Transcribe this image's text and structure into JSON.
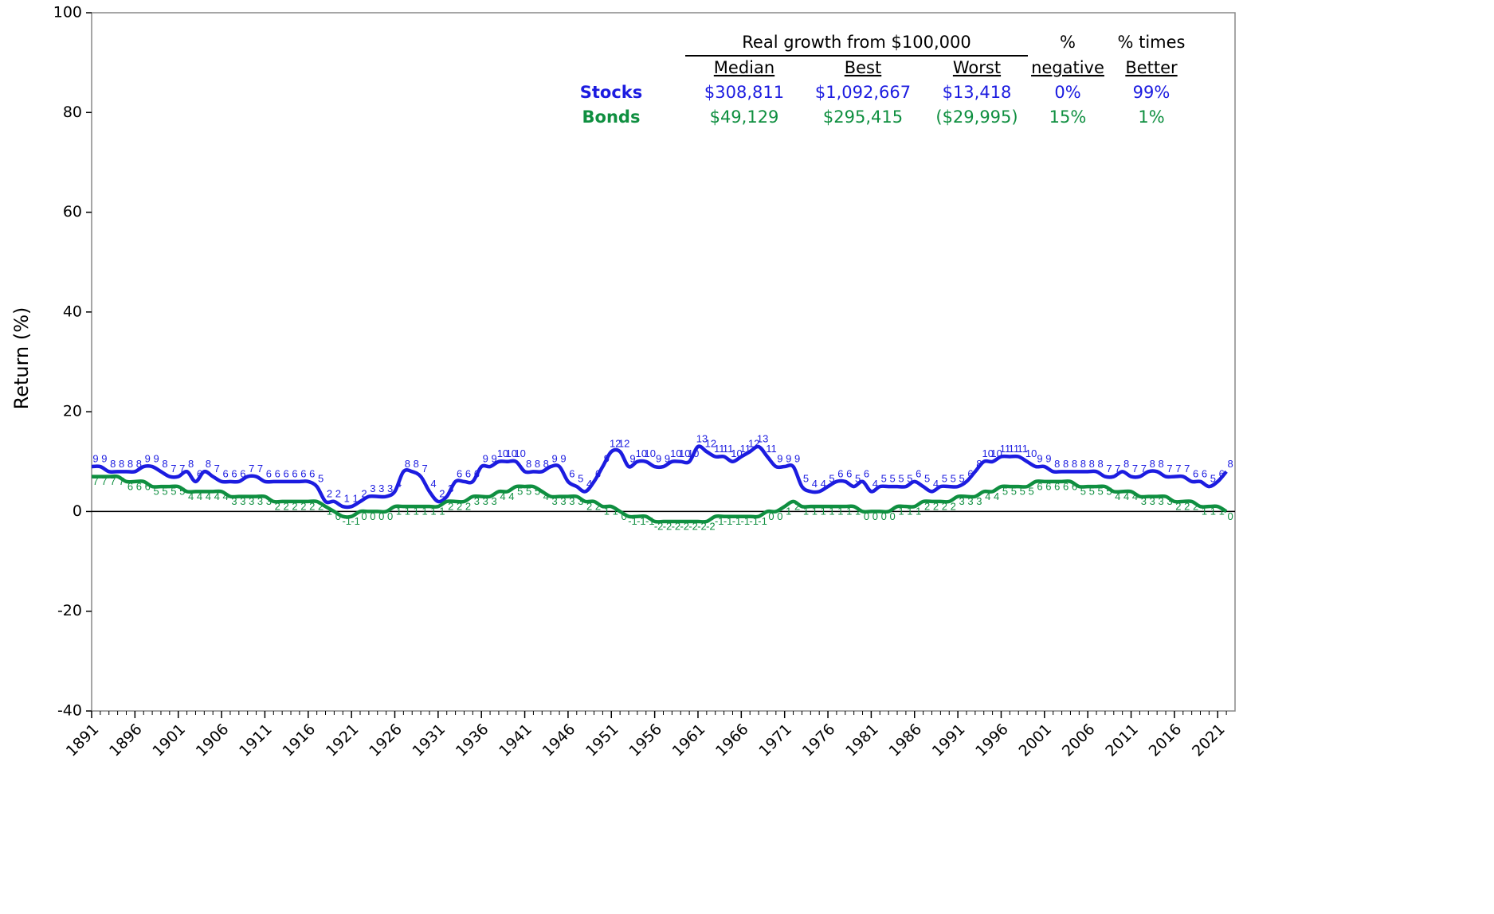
{
  "chart_data": {
    "type": "line",
    "y_label": "Return (%)",
    "x": [
      1891,
      1892,
      1893,
      1894,
      1895,
      1896,
      1897,
      1898,
      1899,
      1900,
      1901,
      1902,
      1903,
      1904,
      1905,
      1906,
      1907,
      1908,
      1909,
      1910,
      1911,
      1912,
      1913,
      1914,
      1915,
      1916,
      1917,
      1918,
      1919,
      1920,
      1921,
      1922,
      1923,
      1924,
      1925,
      1926,
      1927,
      1928,
      1929,
      1930,
      1931,
      1932,
      1933,
      1934,
      1935,
      1936,
      1937,
      1938,
      1939,
      1940,
      1941,
      1942,
      1943,
      1944,
      1945,
      1946,
      1947,
      1948,
      1949,
      1950,
      1951,
      1952,
      1953,
      1954,
      1955,
      1956,
      1957,
      1958,
      1959,
      1960,
      1961,
      1962,
      1963,
      1964,
      1965,
      1966,
      1967,
      1968,
      1969,
      1970,
      1971,
      1972,
      1973,
      1974,
      1975,
      1976,
      1977,
      1978,
      1979,
      1980,
      1981,
      1982,
      1983,
      1984,
      1985,
      1986,
      1987,
      1988,
      1989,
      1990,
      1991,
      1992,
      1993,
      1994,
      1995,
      1996,
      1997,
      1998,
      1999,
      2000,
      2001,
      2002,
      2003,
      2004,
      2005,
      2006,
      2007,
      2008,
      2009,
      2010,
      2011,
      2012,
      2013,
      2014,
      2015,
      2016,
      2017,
      2018,
      2019,
      2020,
      2021,
      2022
    ],
    "series": [
      {
        "name": "Stocks",
        "color": "#1c1ce0",
        "values": [
          9,
          9,
          8,
          8,
          8,
          8,
          9,
          9,
          8,
          7,
          7,
          8,
          6,
          8,
          7,
          6,
          6,
          6,
          7,
          7,
          6,
          6,
          6,
          6,
          6,
          6,
          5,
          2,
          2,
          1,
          1,
          2,
          3,
          3,
          3,
          4,
          8,
          8,
          7,
          4,
          2,
          3,
          6,
          6,
          6,
          9,
          9,
          10,
          10,
          10,
          8,
          8,
          8,
          9,
          9,
          6,
          5,
          4,
          6,
          9,
          12,
          12,
          9,
          10,
          10,
          9,
          9,
          10,
          10,
          10,
          13,
          12,
          11,
          11,
          10,
          11,
          12,
          13,
          11,
          9,
          9,
          9,
          5,
          4,
          4,
          5,
          6,
          6,
          5,
          6,
          4,
          5,
          5,
          5,
          5,
          6,
          5,
          4,
          5,
          5,
          5,
          6,
          8,
          10,
          10,
          11,
          11,
          11,
          10,
          9,
          9,
          8,
          8,
          8,
          8,
          8,
          8,
          7,
          7,
          8,
          7,
          7,
          8,
          8,
          7,
          7,
          7,
          6,
          6,
          5,
          6,
          8
        ]
      },
      {
        "name": "Bonds",
        "color": "#0f8f40",
        "values": [
          7,
          7,
          7,
          7,
          6,
          6,
          6,
          5,
          5,
          5,
          5,
          4,
          4,
          4,
          4,
          4,
          3,
          3,
          3,
          3,
          3,
          2,
          2,
          2,
          2,
          2,
          2,
          1,
          0,
          -1,
          -1,
          0,
          0,
          0,
          0,
          1,
          1,
          1,
          1,
          1,
          1,
          2,
          2,
          2,
          3,
          3,
          3,
          4,
          4,
          5,
          5,
          5,
          4,
          3,
          3,
          3,
          3,
          2,
          2,
          1,
          1,
          0,
          -1,
          -1,
          -1,
          -2,
          -2,
          -2,
          -2,
          -2,
          -2,
          -2,
          -1,
          -1,
          -1,
          -1,
          -1,
          -1,
          0,
          0,
          1,
          2,
          1,
          1,
          1,
          1,
          1,
          1,
          1,
          0,
          0,
          0,
          0,
          1,
          1,
          1,
          2,
          2,
          2,
          2,
          3,
          3,
          3,
          4,
          4,
          5,
          5,
          5,
          5,
          6,
          6,
          6,
          6,
          6,
          5,
          5,
          5,
          5,
          4,
          4,
          4,
          3,
          3,
          3,
          3,
          2,
          2,
          2,
          1,
          1,
          1,
          0
        ]
      }
    ],
    "xlim": [
      1891,
      2023
    ],
    "xticks": [
      1891,
      1896,
      1901,
      1906,
      1911,
      1916,
      1921,
      1926,
      1931,
      1936,
      1941,
      1946,
      1951,
      1956,
      1961,
      1966,
      1971,
      1976,
      1981,
      1986,
      1991,
      1996,
      2001,
      2006,
      2011,
      2016,
      2021
    ],
    "ylim": [
      -40,
      100
    ],
    "yticks": [
      -40,
      -20,
      0,
      20,
      40,
      60,
      80,
      100
    ],
    "zero_line": true,
    "table": {
      "group_header": "Real growth from $100,000",
      "columns": [
        [
          "Median"
        ],
        [
          "Best"
        ],
        [
          "Worst"
        ],
        [
          "%",
          "negative"
        ],
        [
          "% times",
          "Better"
        ]
      ],
      "rows": [
        {
          "label": "Stocks",
          "cells": [
            "$308,811",
            "$1,092,667",
            "$13,418",
            "0%",
            "99%"
          ]
        },
        {
          "label": "Bonds",
          "cells": [
            "$49,129",
            "$295,415",
            "($29,995)",
            "15%",
            "1%"
          ]
        }
      ]
    }
  }
}
